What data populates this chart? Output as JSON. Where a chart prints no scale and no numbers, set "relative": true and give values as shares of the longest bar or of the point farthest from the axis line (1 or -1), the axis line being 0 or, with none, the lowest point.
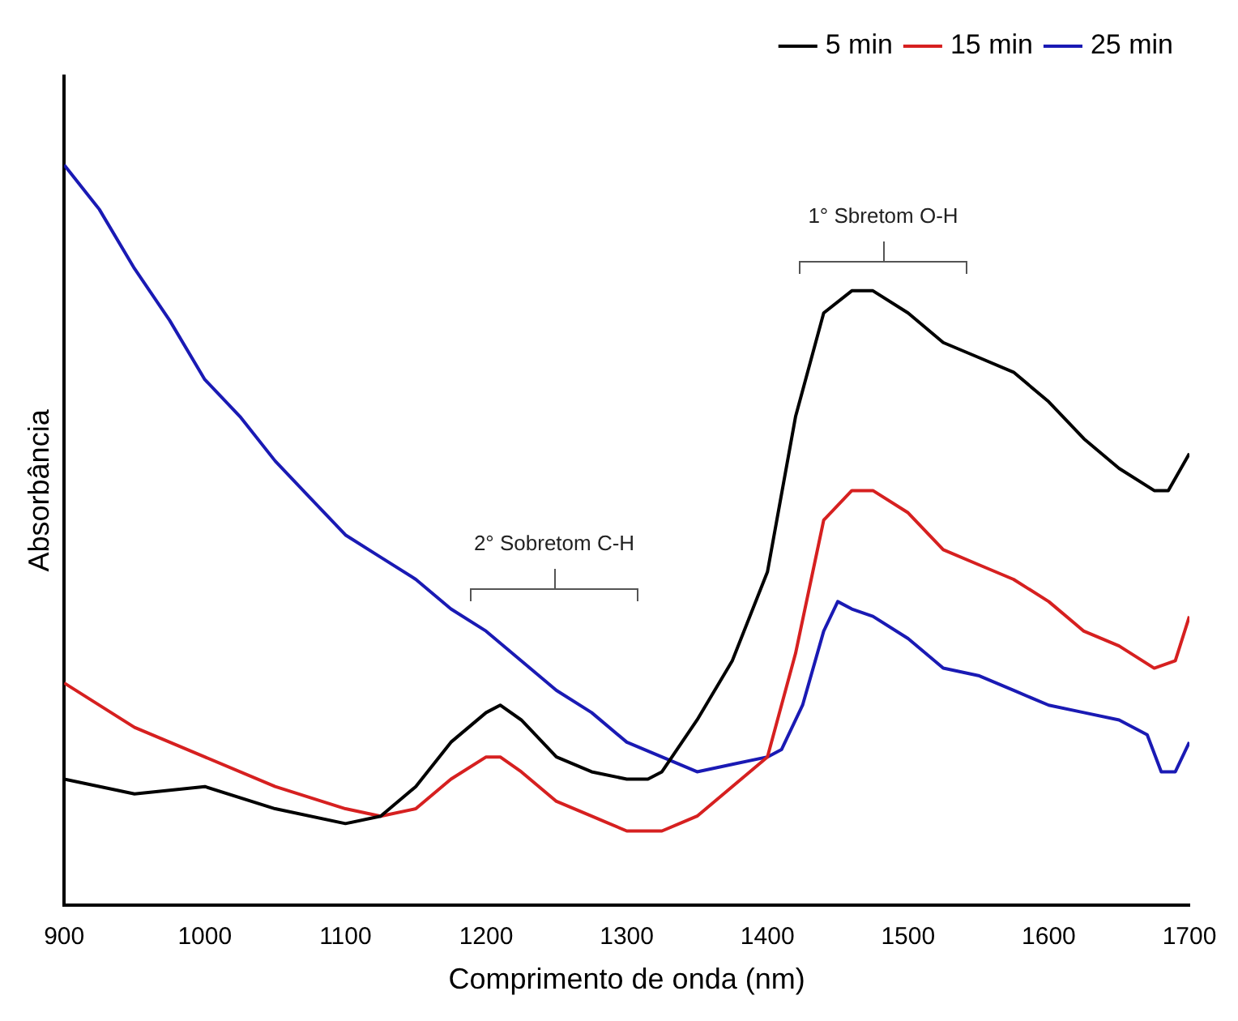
{
  "chart_data": {
    "type": "line",
    "relative": true,
    "xlabel": "Comprimento de onda (nm)",
    "ylabel": "Absorbância",
    "xlim": [
      900,
      1700
    ],
    "xticks": [
      900,
      1000,
      1100,
      1200,
      1300,
      1400,
      1500,
      1600,
      1700
    ],
    "grid": false,
    "legend": "top right",
    "marker": "none",
    "line_style": "solid",
    "annotations": [
      "2° Sobretom C-H",
      "1° Sbretom O-H"
    ],
    "series": [
      {
        "name": "5 min",
        "color": "#000000",
        "x": [
          900,
          950,
          1000,
          1050,
          1100,
          1125,
          1150,
          1175,
          1200,
          1210,
          1225,
          1250,
          1275,
          1300,
          1315,
          1325,
          1350,
          1375,
          1400,
          1420,
          1440,
          1460,
          1475,
          1500,
          1525,
          1550,
          1575,
          1600,
          1625,
          1650,
          1675,
          1685,
          1700
        ],
        "values": [
          0.17,
          0.15,
          0.16,
          0.13,
          0.11,
          0.12,
          0.16,
          0.22,
          0.26,
          0.27,
          0.25,
          0.2,
          0.18,
          0.17,
          0.17,
          0.18,
          0.25,
          0.33,
          0.45,
          0.66,
          0.8,
          0.83,
          0.83,
          0.8,
          0.76,
          0.74,
          0.72,
          0.68,
          0.63,
          0.59,
          0.56,
          0.56,
          0.61
        ]
      },
      {
        "name": "15 min",
        "color": "#d62020",
        "x": [
          900,
          950,
          1000,
          1050,
          1100,
          1125,
          1150,
          1175,
          1200,
          1210,
          1225,
          1250,
          1275,
          1300,
          1325,
          1350,
          1375,
          1400,
          1420,
          1440,
          1460,
          1475,
          1500,
          1525,
          1550,
          1575,
          1600,
          1625,
          1650,
          1675,
          1690,
          1700
        ],
        "values": [
          0.3,
          0.24,
          0.2,
          0.16,
          0.13,
          0.12,
          0.13,
          0.17,
          0.2,
          0.2,
          0.18,
          0.14,
          0.12,
          0.1,
          0.1,
          0.12,
          0.16,
          0.2,
          0.34,
          0.52,
          0.56,
          0.56,
          0.53,
          0.48,
          0.46,
          0.44,
          0.41,
          0.37,
          0.35,
          0.32,
          0.33,
          0.39
        ]
      },
      {
        "name": "25 min",
        "color": "#1a1ab4",
        "x": [
          900,
          925,
          950,
          975,
          1000,
          1025,
          1050,
          1075,
          1100,
          1125,
          1150,
          1175,
          1200,
          1225,
          1250,
          1275,
          1300,
          1325,
          1350,
          1375,
          1400,
          1410,
          1425,
          1440,
          1450,
          1460,
          1475,
          1500,
          1525,
          1550,
          1575,
          1600,
          1625,
          1650,
          1670,
          1680,
          1690,
          1700
        ],
        "values": [
          1.0,
          0.94,
          0.86,
          0.79,
          0.71,
          0.66,
          0.6,
          0.55,
          0.5,
          0.47,
          0.44,
          0.4,
          0.37,
          0.33,
          0.29,
          0.26,
          0.22,
          0.2,
          0.18,
          0.19,
          0.2,
          0.21,
          0.27,
          0.37,
          0.41,
          0.4,
          0.39,
          0.36,
          0.32,
          0.31,
          0.29,
          0.27,
          0.26,
          0.25,
          0.23,
          0.18,
          0.18,
          0.22
        ]
      }
    ]
  }
}
